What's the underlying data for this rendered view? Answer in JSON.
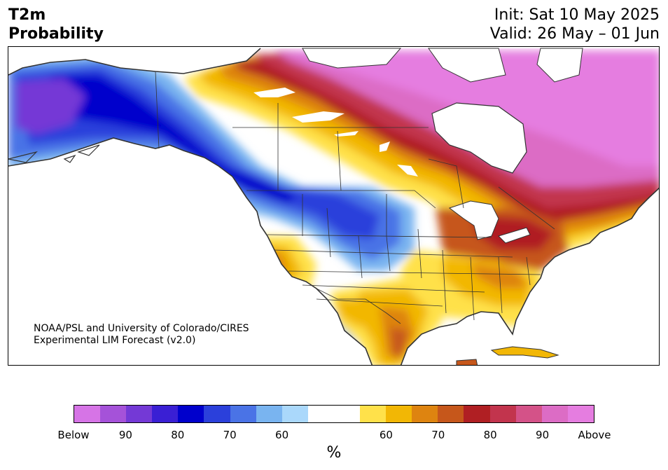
{
  "header": {
    "variable": "T2m",
    "subtitle": "Probability",
    "init": "Init: Sat 10 May 2025",
    "valid": "Valid: 26 May – 01 Jun"
  },
  "credit": {
    "line1": "NOAA/PSL and University of Colorado/CIRES",
    "line2": "Experimental LIM Forecast (v2.0)"
  },
  "colorbar": {
    "unit": "%",
    "colors": [
      "#d674e6",
      "#a552d9",
      "#7439d6",
      "#3a1fd4",
      "#0000cc",
      "#2b40db",
      "#4a73e6",
      "#79b4f0",
      "#aad8fb",
      "#ffffff",
      "#ffffff",
      "#ffe14a",
      "#f2b705",
      "#de8410",
      "#c6571b",
      "#b01f23",
      "#c2344d",
      "#d45288",
      "#dc6cc5",
      "#e57de0"
    ],
    "ticks": [
      "Below",
      "90",
      "80",
      "70",
      "60",
      "60",
      "70",
      "80",
      "90",
      "Above"
    ]
  }
}
